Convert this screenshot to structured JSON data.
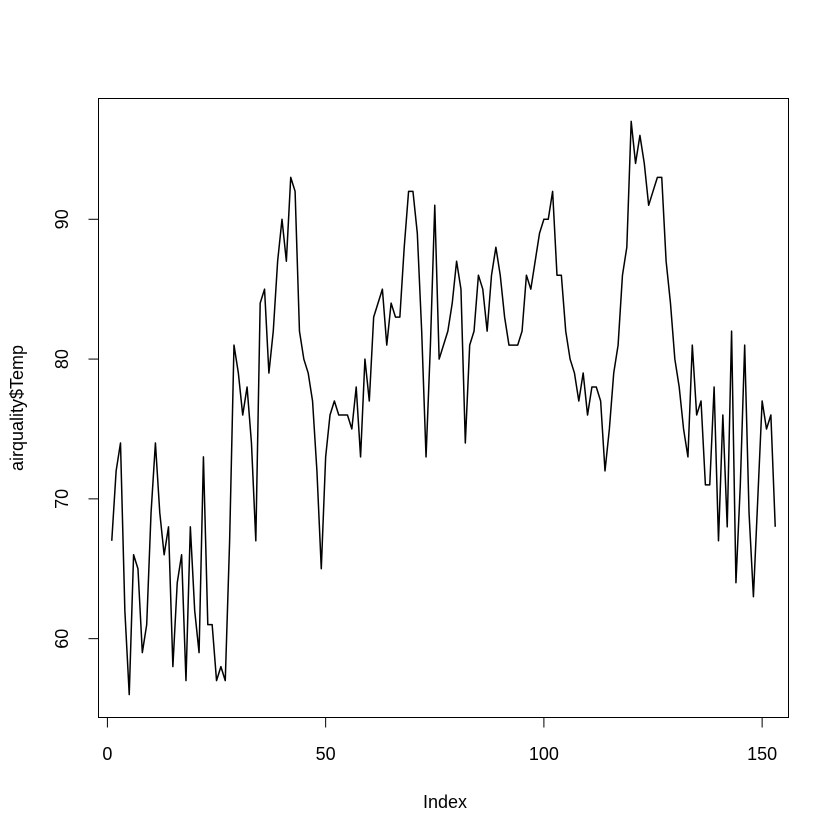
{
  "chart_data": {
    "type": "line",
    "title": "",
    "xlabel": "Index",
    "ylabel": "airquality$Temp",
    "xlim": [
      -2.04,
      156.04
    ],
    "ylim": [
      54.36,
      98.64
    ],
    "x_ticks": [
      0,
      50,
      100,
      150
    ],
    "x_tick_labels": [
      "0",
      "50",
      "100",
      "150"
    ],
    "y_ticks": [
      60,
      70,
      80,
      90
    ],
    "y_tick_labels": [
      "60",
      "70",
      "80",
      "90"
    ],
    "grid": false,
    "legend": "none",
    "series": [
      {
        "color": "#000000",
        "values": [
          67,
          72,
          74,
          62,
          56,
          66,
          65,
          59,
          61,
          69,
          74,
          69,
          66,
          68,
          58,
          64,
          66,
          57,
          68,
          62,
          59,
          73,
          61,
          61,
          57,
          58,
          57,
          67,
          81,
          79,
          76,
          78,
          74,
          67,
          84,
          85,
          79,
          82,
          87,
          90,
          87,
          93,
          92,
          82,
          80,
          79,
          77,
          72,
          65,
          73,
          76,
          77,
          76,
          76,
          76,
          75,
          78,
          73,
          80,
          77,
          83,
          84,
          85,
          81,
          84,
          83,
          83,
          88,
          92,
          92,
          89,
          82,
          73,
          81,
          91,
          80,
          81,
          82,
          84,
          87,
          85,
          74,
          81,
          82,
          86,
          85,
          82,
          86,
          88,
          86,
          83,
          81,
          81,
          81,
          82,
          86,
          85,
          87,
          89,
          90,
          90,
          92,
          86,
          86,
          82,
          80,
          79,
          77,
          79,
          76,
          78,
          78,
          77,
          72,
          75,
          79,
          81,
          86,
          88,
          97,
          94,
          96,
          94,
          91,
          92,
          93,
          93,
          87,
          84,
          80,
          78,
          75,
          73,
          81,
          76,
          77,
          71,
          71,
          78,
          67,
          76,
          68,
          82,
          64,
          71,
          81,
          69,
          63,
          70,
          77,
          75,
          76,
          68
        ]
      }
    ]
  }
}
